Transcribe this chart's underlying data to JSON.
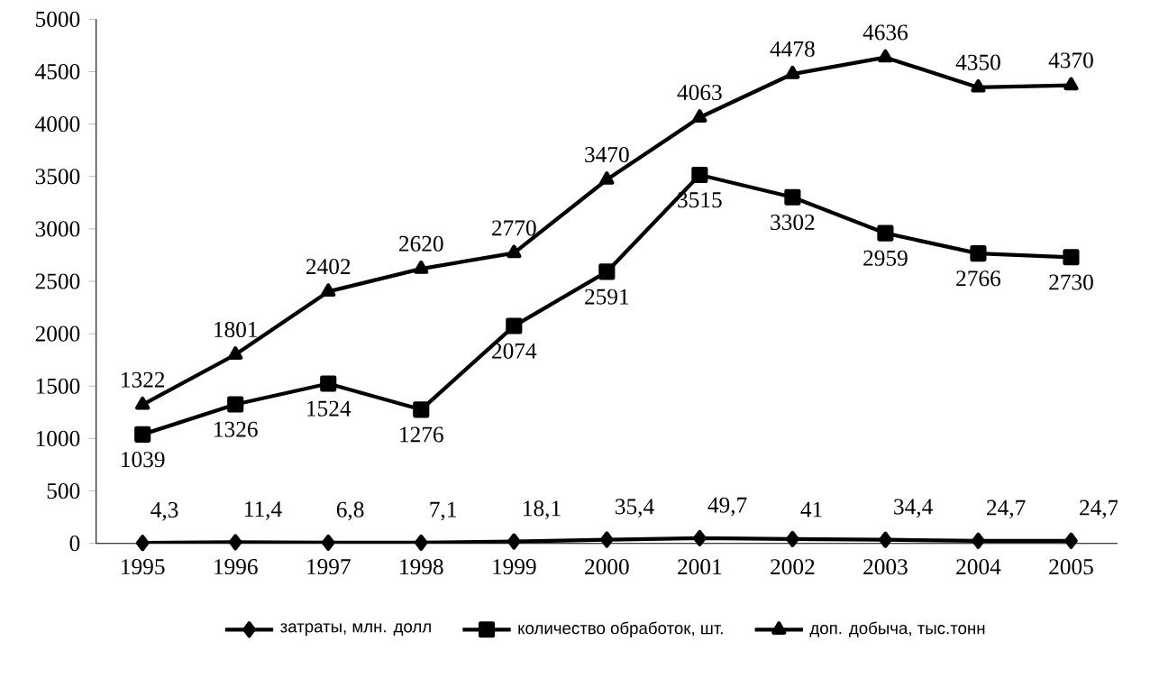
{
  "chart_data": {
    "type": "line",
    "categories": [
      "1995",
      "1996",
      "1997",
      "1998",
      "1999",
      "2000",
      "2001",
      "2002",
      "2003",
      "2004",
      "2005"
    ],
    "ylim": [
      0,
      5000
    ],
    "yticks": [
      0,
      500,
      1000,
      1500,
      2000,
      2500,
      3000,
      3500,
      4000,
      4500,
      5000
    ],
    "grid": false,
    "legend": "bottom",
    "series": [
      {
        "name": "затраты, млн. долл",
        "color": "#000000",
        "marker": "diamond",
        "values": [
          4.3,
          11.4,
          6.8,
          7.1,
          18.1,
          35.4,
          49.7,
          41,
          34.4,
          24.7,
          24.7
        ],
        "value_labels": [
          "4,3",
          "11,4",
          "6,8",
          "7,1",
          "18,1",
          "35,4",
          "49,7",
          "41",
          "34,4",
          "24,7",
          "24,7"
        ]
      },
      {
        "name": "количество обработок, шт.",
        "color": "#000000",
        "marker": "square",
        "values": [
          1039,
          1326,
          1524,
          1276,
          2074,
          2591,
          3515,
          3302,
          2959,
          2766,
          2730
        ],
        "value_labels": [
          "1039",
          "1326",
          "1524",
          "1276",
          "2074",
          "2591",
          "3515",
          "3302",
          "2959",
          "2766",
          "2730"
        ]
      },
      {
        "name": "доп. добыча, тыс.тонн",
        "color": "#000000",
        "marker": "triangle",
        "values": [
          1322,
          1801,
          2402,
          2620,
          2770,
          3470,
          4063,
          4478,
          4636,
          4350,
          4370
        ],
        "value_labels": [
          "1322",
          "1801",
          "2402",
          "2620",
          "2770",
          "3470",
          "4063",
          "4478",
          "4636",
          "4350",
          "4370"
        ]
      }
    ]
  }
}
